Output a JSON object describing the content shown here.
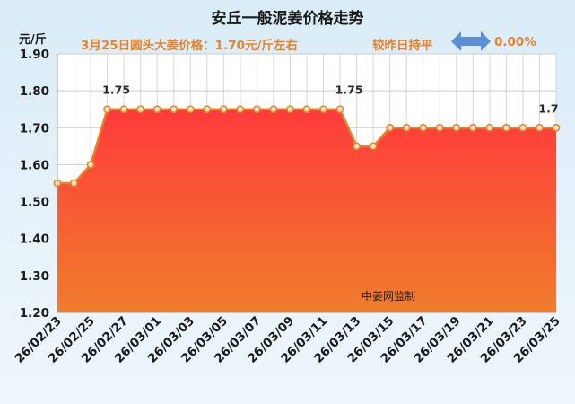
{
  "header": {
    "title": "安丘一般泥姜价格走势",
    "subtitle": "3月25日圆头大姜价格：1.70元/斤左右",
    "compare_label": "较昨日持平",
    "change": "0.00%",
    "unit": "元/斤",
    "watermark": "中姜网监制",
    "change_icon": "left-right-arrow-icon",
    "colors": {
      "accent": "#e8822a",
      "arrow": "#5b8fd6",
      "area_top": "#ff3b3b",
      "area_bottom": "#f07d2c",
      "line": "#e0852e"
    }
  },
  "chart_data": {
    "type": "area",
    "title": "安丘一般泥姜价格走势",
    "ylabel": "元/斤",
    "xlabel": "",
    "ylim": [
      1.2,
      1.9
    ],
    "yticks": [
      "1.20",
      "1.30",
      "1.40",
      "1.50",
      "1.60",
      "1.70",
      "1.80",
      "1.90"
    ],
    "grid": true,
    "x": [
      "26/02/23",
      "26/02/24",
      "26/02/25",
      "26/02/26",
      "26/02/27",
      "26/02/28",
      "26/03/01",
      "26/03/02",
      "26/03/03",
      "26/03/04",
      "26/03/05",
      "26/03/06",
      "26/03/07",
      "26/03/08",
      "26/03/09",
      "26/03/10",
      "26/03/11",
      "26/03/12",
      "26/03/13",
      "26/03/14",
      "26/03/15",
      "26/03/16",
      "26/03/17",
      "26/03/18",
      "26/03/19",
      "26/03/20",
      "26/03/21",
      "26/03/22",
      "26/03/23",
      "26/03/24",
      "26/03/25"
    ],
    "xtick_labels": [
      "26/02/23",
      "26/02/25",
      "26/02/27",
      "26/03/01",
      "26/03/03",
      "26/03/05",
      "26/03/07",
      "26/03/09",
      "26/03/11",
      "26/03/13",
      "26/03/15",
      "26/03/17",
      "26/03/19",
      "26/03/21",
      "26/03/23",
      "26/03/25"
    ],
    "values": [
      1.55,
      1.55,
      1.6,
      1.75,
      1.75,
      1.75,
      1.75,
      1.75,
      1.75,
      1.75,
      1.75,
      1.75,
      1.75,
      1.75,
      1.75,
      1.75,
      1.75,
      1.75,
      1.65,
      1.65,
      1.7,
      1.7,
      1.7,
      1.7,
      1.7,
      1.7,
      1.7,
      1.7,
      1.7,
      1.7,
      1.7
    ],
    "data_labels": [
      {
        "index": 3,
        "text": "1.75"
      },
      {
        "index": 17,
        "text": "1.75"
      },
      {
        "index": 29,
        "text": "1.7"
      }
    ]
  }
}
